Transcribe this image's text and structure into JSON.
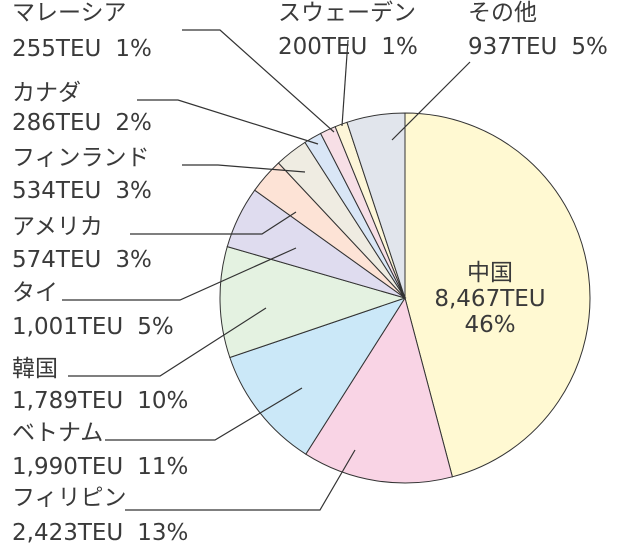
{
  "chart_data": {
    "type": "pie",
    "categories": [
      "中国",
      "フィリピン",
      "ベトナム",
      "韓国",
      "タイ",
      "アメリカ",
      "フィンランド",
      "カナダ",
      "マレーシア",
      "スウェーデン",
      "その他"
    ],
    "values": [
      8467,
      2423,
      1990,
      1789,
      1001,
      574,
      534,
      286,
      255,
      200,
      937
    ],
    "value_labels": [
      "8,467TEU",
      "2,423TEU",
      "1,990TEU",
      "1,789TEU",
      "1,001TEU",
      "574TEU",
      "534TEU",
      "286TEU",
      "255TEU",
      "200TEU",
      "937TEU"
    ],
    "percent_labels": [
      "46%",
      "13%",
      "11%",
      "10%",
      "5%",
      "3%",
      "3%",
      "2%",
      "1%",
      "1%",
      "5%"
    ],
    "colors": [
      "#fff9d2",
      "#f9d4e5",
      "#cbe8f8",
      "#e4f2e1",
      "#dfdcef",
      "#fde3d6",
      "#efece2",
      "#d9e6f6",
      "#f7dfe6",
      "#fdf6d8",
      "#e1e5ec"
    ]
  }
}
